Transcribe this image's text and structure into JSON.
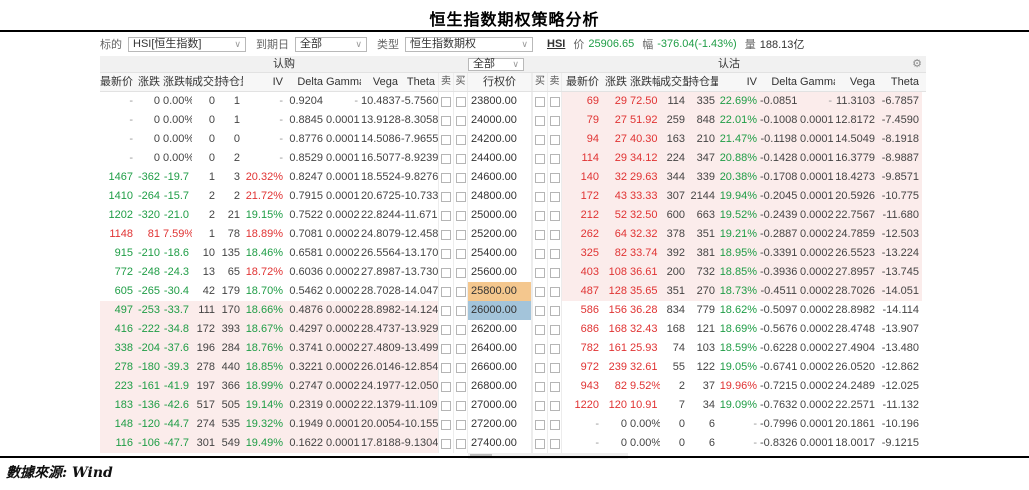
{
  "title": "恒生指数期权策略分析",
  "toolbar": {
    "underlying_label": "标的",
    "underlying_value": "HSI[恒生指数]",
    "expiry_label": "到期日",
    "expiry_value": "全部",
    "type_label": "类型",
    "type_value": "恒生指数期权",
    "index_code": "HSI",
    "price_label": "价",
    "price_value": "25906.65",
    "change_label": "幅",
    "change_value": "-376.04(-1.43%)",
    "volume_label": "量",
    "volume_value": "188.13亿"
  },
  "table": {
    "call_group_label": "认购",
    "put_group_label": "认沽",
    "strike_filter_value": "全部",
    "settings_icon": "gear-icon",
    "col_headers_call": [
      "最新价",
      "涨跌",
      "涨跌幅",
      "成交量",
      "持仓量",
      "IV",
      "Delta",
      "Gamma",
      "Vega",
      "Theta",
      "卖",
      "买"
    ],
    "strike_header": "行权价",
    "col_headers_put": [
      "买",
      "卖",
      "最新价",
      "涨跌",
      "涨跌幅",
      "成交量",
      "持仓量",
      "IV",
      "Delta",
      "Gamma",
      "Vega",
      "Theta"
    ],
    "rows": [
      {
        "strike": "23800.00",
        "strike_bg": "",
        "call": {
          "v": [
            "-",
            "0",
            "0.00%",
            "0",
            "1",
            "-",
            "0.9204",
            "-",
            "10.4837",
            "-5.7560"
          ],
          "pc": "k",
          "ivc": "k",
          "bg": ""
        },
        "put": {
          "v": [
            "69",
            "29",
            "72.50",
            "114",
            "335",
            "22.69%",
            "-0.0851",
            "-",
            "11.3103",
            "-6.7857"
          ],
          "pc": "r",
          "ivc": "g",
          "bg": "pink"
        }
      },
      {
        "strike": "24000.00",
        "strike_bg": "",
        "call": {
          "v": [
            "-",
            "0",
            "0.00%",
            "0",
            "1",
            "-",
            "0.8845",
            "0.0001",
            "13.9128",
            "-8.3058"
          ],
          "pc": "k",
          "ivc": "k",
          "bg": ""
        },
        "put": {
          "v": [
            "79",
            "27",
            "51.92",
            "259",
            "848",
            "22.01%",
            "-0.1008",
            "0.0001",
            "12.8172",
            "-7.4590"
          ],
          "pc": "r",
          "ivc": "g",
          "bg": "pink"
        }
      },
      {
        "strike": "24200.00",
        "strike_bg": "",
        "call": {
          "v": [
            "-",
            "0",
            "0.00%",
            "0",
            "0",
            "-",
            "0.8776",
            "0.0001",
            "14.5086",
            "-7.9655"
          ],
          "pc": "k",
          "ivc": "k",
          "bg": ""
        },
        "put": {
          "v": [
            "94",
            "27",
            "40.30",
            "163",
            "210",
            "21.47%",
            "-0.1198",
            "0.0001",
            "14.5049",
            "-8.1918"
          ],
          "pc": "r",
          "ivc": "g",
          "bg": "pink"
        }
      },
      {
        "strike": "24400.00",
        "strike_bg": "",
        "call": {
          "v": [
            "-",
            "0",
            "0.00%",
            "0",
            "2",
            "-",
            "0.8529",
            "0.0001",
            "16.5077",
            "-8.9239"
          ],
          "pc": "k",
          "ivc": "k",
          "bg": ""
        },
        "put": {
          "v": [
            "114",
            "29",
            "34.12",
            "224",
            "347",
            "20.88%",
            "-0.1428",
            "0.0001",
            "16.3779",
            "-8.9887"
          ],
          "pc": "r",
          "ivc": "g",
          "bg": "pink"
        }
      },
      {
        "strike": "24600.00",
        "strike_bg": "",
        "call": {
          "v": [
            "1467",
            "-362",
            "-19.7",
            "1",
            "3",
            "20.32%",
            "0.8247",
            "0.0001",
            "18.5524",
            "-9.8276"
          ],
          "pc": "g",
          "ivc": "r",
          "bg": ""
        },
        "put": {
          "v": [
            "140",
            "32",
            "29.63",
            "344",
            "339",
            "20.38%",
            "-0.1708",
            "0.0001",
            "18.4273",
            "-9.8571"
          ],
          "pc": "r",
          "ivc": "g",
          "bg": "pink"
        }
      },
      {
        "strike": "24800.00",
        "strike_bg": "",
        "call": {
          "v": [
            "1410",
            "-264",
            "-15.7",
            "2",
            "2",
            "21.72%",
            "0.7915",
            "0.0001",
            "20.6725",
            "-10.733"
          ],
          "pc": "g",
          "ivc": "r",
          "bg": ""
        },
        "put": {
          "v": [
            "172",
            "43",
            "33.33",
            "307",
            "2144",
            "19.94%",
            "-0.2045",
            "0.0001",
            "20.5926",
            "-10.775"
          ],
          "pc": "r",
          "ivc": "g",
          "bg": "pink"
        }
      },
      {
        "strike": "25000.00",
        "strike_bg": "",
        "call": {
          "v": [
            "1202",
            "-320",
            "-21.0",
            "2",
            "21",
            "19.15%",
            "0.7522",
            "0.0002",
            "22.8244",
            "-11.671"
          ],
          "pc": "g",
          "ivc": "g",
          "bg": ""
        },
        "put": {
          "v": [
            "212",
            "52",
            "32.50",
            "600",
            "663",
            "19.52%",
            "-0.2439",
            "0.0002",
            "22.7567",
            "-11.680"
          ],
          "pc": "r",
          "ivc": "g",
          "bg": "pink"
        }
      },
      {
        "strike": "25200.00",
        "strike_bg": "",
        "call": {
          "v": [
            "1148",
            "81",
            "7.59%",
            "1",
            "78",
            "18.89%",
            "0.7081",
            "0.0002",
            "24.8079",
            "-12.458"
          ],
          "pc": "r",
          "ivc": "r",
          "bg": ""
        },
        "put": {
          "v": [
            "262",
            "64",
            "32.32",
            "378",
            "351",
            "19.21%",
            "-0.2887",
            "0.0002",
            "24.7859",
            "-12.503"
          ],
          "pc": "r",
          "ivc": "g",
          "bg": "pink"
        }
      },
      {
        "strike": "25400.00",
        "strike_bg": "",
        "call": {
          "v": [
            "915",
            "-210",
            "-18.6",
            "10",
            "135",
            "18.46%",
            "0.6581",
            "0.0002",
            "26.5564",
            "-13.170"
          ],
          "pc": "g",
          "ivc": "g",
          "bg": ""
        },
        "put": {
          "v": [
            "325",
            "82",
            "33.74",
            "392",
            "381",
            "18.95%",
            "-0.3391",
            "0.0002",
            "26.5523",
            "-13.224"
          ],
          "pc": "r",
          "ivc": "g",
          "bg": "pink"
        }
      },
      {
        "strike": "25600.00",
        "strike_bg": "",
        "call": {
          "v": [
            "772",
            "-248",
            "-24.3",
            "13",
            "65",
            "18.72%",
            "0.6036",
            "0.0002",
            "27.8987",
            "-13.730"
          ],
          "pc": "g",
          "ivc": "r",
          "bg": ""
        },
        "put": {
          "v": [
            "403",
            "108",
            "36.61",
            "200",
            "732",
            "18.85%",
            "-0.3936",
            "0.0002",
            "27.8957",
            "-13.745"
          ],
          "pc": "r",
          "ivc": "g",
          "bg": "pink"
        }
      },
      {
        "strike": "25800.00",
        "strike_bg": "orange",
        "call": {
          "v": [
            "605",
            "-265",
            "-30.4",
            "42",
            "179",
            "18.70%",
            "0.5462",
            "0.0002",
            "28.7028",
            "-14.047"
          ],
          "pc": "g",
          "ivc": "g",
          "bg": ""
        },
        "put": {
          "v": [
            "487",
            "128",
            "35.65",
            "351",
            "270",
            "18.73%",
            "-0.4511",
            "0.0002",
            "28.7026",
            "-14.051"
          ],
          "pc": "r",
          "ivc": "g",
          "bg": "pink"
        }
      },
      {
        "strike": "26000.00",
        "strike_bg": "blue",
        "call": {
          "v": [
            "497",
            "-253",
            "-33.7",
            "111",
            "170",
            "18.66%",
            "0.4876",
            "0.0002",
            "28.8982",
            "-14.124"
          ],
          "pc": "g",
          "ivc": "g",
          "bg": "pink"
        },
        "put": {
          "v": [
            "586",
            "156",
            "36.28",
            "834",
            "779",
            "18.62%",
            "-0.5097",
            "0.0002",
            "28.8982",
            "-14.114"
          ],
          "pc": "r",
          "ivc": "g",
          "bg": ""
        }
      },
      {
        "strike": "26200.00",
        "strike_bg": "",
        "call": {
          "v": [
            "416",
            "-222",
            "-34.8",
            "172",
            "393",
            "18.67%",
            "0.4297",
            "0.0002",
            "28.4737",
            "-13.929"
          ],
          "pc": "g",
          "ivc": "g",
          "bg": "pink"
        },
        "put": {
          "v": [
            "686",
            "168",
            "32.43",
            "168",
            "121",
            "18.69%",
            "-0.5676",
            "0.0002",
            "28.4748",
            "-13.907"
          ],
          "pc": "r",
          "ivc": "g",
          "bg": ""
        }
      },
      {
        "strike": "26400.00",
        "strike_bg": "",
        "call": {
          "v": [
            "338",
            "-204",
            "-37.6",
            "196",
            "284",
            "18.76%",
            "0.3741",
            "0.0002",
            "27.4809",
            "-13.499"
          ],
          "pc": "g",
          "ivc": "g",
          "bg": "pink"
        },
        "put": {
          "v": [
            "782",
            "161",
            "25.93",
            "74",
            "103",
            "18.59%",
            "-0.6228",
            "0.0002",
            "27.4904",
            "-13.480"
          ],
          "pc": "r",
          "ivc": "g",
          "bg": ""
        }
      },
      {
        "strike": "26600.00",
        "strike_bg": "",
        "call": {
          "v": [
            "278",
            "-180",
            "-39.3",
            "278",
            "440",
            "18.85%",
            "0.3221",
            "0.0002",
            "26.0146",
            "-12.854"
          ],
          "pc": "g",
          "ivc": "g",
          "bg": "pink"
        },
        "put": {
          "v": [
            "972",
            "239",
            "32.61",
            "55",
            "122",
            "19.05%",
            "-0.6741",
            "0.0002",
            "26.0520",
            "-12.862"
          ],
          "pc": "r",
          "ivc": "g",
          "bg": ""
        }
      },
      {
        "strike": "26800.00",
        "strike_bg": "",
        "call": {
          "v": [
            "223",
            "-161",
            "-41.9",
            "197",
            "366",
            "18.99%",
            "0.2747",
            "0.0002",
            "24.1977",
            "-12.050"
          ],
          "pc": "g",
          "ivc": "g",
          "bg": "pink"
        },
        "put": {
          "v": [
            "943",
            "82",
            "9.52%",
            "2",
            "37",
            "19.96%",
            "-0.7215",
            "0.0002",
            "24.2489",
            "-12.025"
          ],
          "pc": "r",
          "ivc": "r",
          "bg": ""
        }
      },
      {
        "strike": "27000.00",
        "strike_bg": "",
        "call": {
          "v": [
            "183",
            "-136",
            "-42.6",
            "517",
            "505",
            "19.14%",
            "0.2319",
            "0.0002",
            "22.1379",
            "-11.109"
          ],
          "pc": "g",
          "ivc": "g",
          "bg": "pink"
        },
        "put": {
          "v": [
            "1220",
            "120",
            "10.91",
            "7",
            "34",
            "19.09%",
            "-0.7632",
            "0.0002",
            "22.2571",
            "-11.132"
          ],
          "pc": "r",
          "ivc": "g",
          "bg": ""
        }
      },
      {
        "strike": "27200.00",
        "strike_bg": "",
        "call": {
          "v": [
            "148",
            "-120",
            "-44.7",
            "274",
            "535",
            "19.32%",
            "0.1949",
            "0.0001",
            "20.0054",
            "-10.155"
          ],
          "pc": "g",
          "ivc": "g",
          "bg": "pink"
        },
        "put": {
          "v": [
            "-",
            "0",
            "0.00%",
            "0",
            "6",
            "-",
            "-0.7996",
            "0.0001",
            "20.1861",
            "-10.196"
          ],
          "pc": "k",
          "ivc": "k",
          "bg": ""
        }
      },
      {
        "strike": "27400.00",
        "strike_bg": "",
        "call": {
          "v": [
            "116",
            "-106",
            "-47.7",
            "301",
            "549",
            "19.49%",
            "0.1622",
            "0.0001",
            "17.8188",
            "-9.1304"
          ],
          "pc": "g",
          "ivc": "g",
          "bg": "pink"
        },
        "put": {
          "v": [
            "-",
            "0",
            "0.00%",
            "0",
            "6",
            "-",
            "-0.8326",
            "0.0001",
            "18.0017",
            "-9.1215"
          ],
          "pc": "k",
          "ivc": "k",
          "bg": ""
        }
      }
    ]
  },
  "footer": {
    "source": "數據來源: Wind"
  },
  "colors": {
    "up": "#e03333",
    "down": "#1f9d46",
    "neutral": "#444444",
    "na": "#999999",
    "itm_row_bg": "#fbeceb",
    "strike_active_bg": "#f4c78e",
    "strike_selected_bg": "#a3c4da",
    "title": "#c00000"
  }
}
